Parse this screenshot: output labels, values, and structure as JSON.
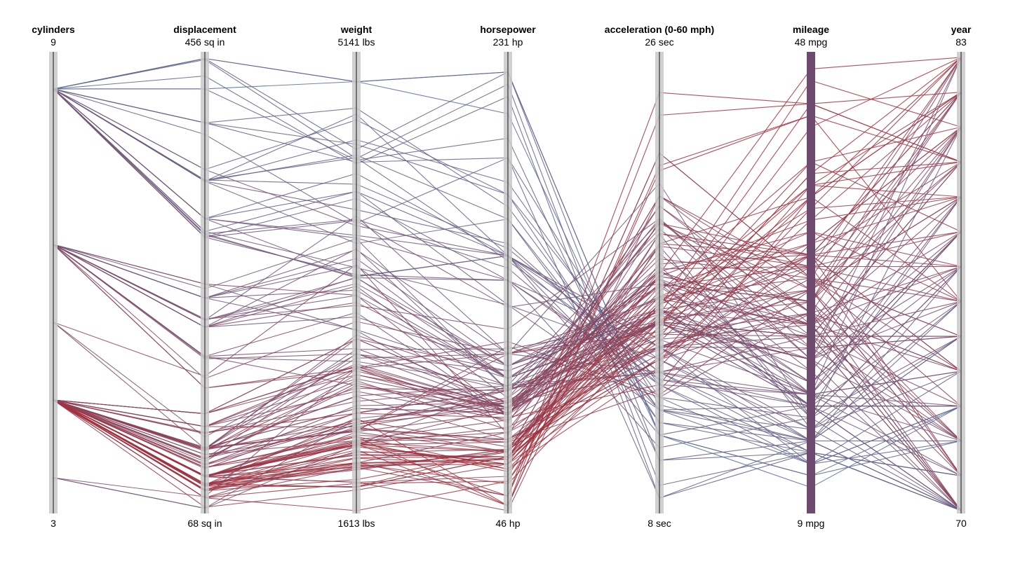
{
  "chart_data": {
    "type": "parallel-coordinates",
    "title": "",
    "color_by": "mileage",
    "color_scale": {
      "low": "#4a78aa",
      "high": "#a3323e"
    },
    "axis_colors": {
      "background": "#c8c8c8",
      "line": "#333333",
      "brush": "#6e4a6e"
    },
    "axes": [
      {
        "key": "cylinders",
        "title": "cylinders",
        "max_label": "9",
        "min_label": "3",
        "domain": [
          3,
          9
        ],
        "brushed": false
      },
      {
        "key": "displacement",
        "title": "displacement",
        "max_label": "456 sq in",
        "min_label": "68 sq in",
        "domain": [
          68,
          456
        ],
        "brushed": false
      },
      {
        "key": "weight",
        "title": "weight",
        "max_label": "5141 lbs",
        "min_label": "1613 lbs",
        "domain": [
          1613,
          5141
        ],
        "brushed": false
      },
      {
        "key": "horsepower",
        "title": "horsepower",
        "max_label": "231 hp",
        "min_label": "46 hp",
        "domain": [
          46,
          231
        ],
        "brushed": false
      },
      {
        "key": "acceleration",
        "title": "acceleration (0-60 mph)",
        "max_label": "26 sec",
        "min_label": "8 sec",
        "domain": [
          8,
          26
        ],
        "brushed": false
      },
      {
        "key": "mileage",
        "title": "mileage",
        "max_label": "48 mpg",
        "min_label": "9 mpg",
        "domain": [
          9,
          48
        ],
        "brushed": true
      },
      {
        "key": "year",
        "title": "year",
        "max_label": "83",
        "min_label": "70",
        "domain": [
          70,
          83
        ],
        "brushed": false
      }
    ],
    "fields": [
      "cylinders",
      "displacement",
      "weight",
      "horsepower",
      "acceleration",
      "mileage",
      "year"
    ],
    "records": [
      [
        8,
        307,
        3504,
        130,
        12.0,
        18,
        70
      ],
      [
        8,
        350,
        3693,
        165,
        11.5,
        15,
        70
      ],
      [
        8,
        318,
        3436,
        150,
        11.0,
        18,
        70
      ],
      [
        8,
        304,
        3433,
        150,
        12.0,
        16,
        70
      ],
      [
        8,
        302,
        3449,
        140,
        10.5,
        17,
        70
      ],
      [
        8,
        429,
        4341,
        198,
        10.0,
        15,
        70
      ],
      [
        8,
        454,
        4354,
        220,
        9.0,
        14,
        70
      ],
      [
        8,
        440,
        4312,
        215,
        8.5,
        14,
        70
      ],
      [
        8,
        455,
        4425,
        225,
        10.0,
        14,
        70
      ],
      [
        8,
        390,
        3850,
        190,
        8.5,
        15,
        70
      ],
      [
        4,
        113,
        2372,
        95,
        15.0,
        24,
        70
      ],
      [
        6,
        198,
        2833,
        95,
        15.5,
        22,
        70
      ],
      [
        6,
        199,
        2774,
        97,
        15.5,
        18,
        70
      ],
      [
        6,
        200,
        2587,
        85,
        16.0,
        21,
        70
      ],
      [
        4,
        97,
        2130,
        88,
        14.5,
        27,
        70
      ],
      [
        4,
        97,
        1835,
        46,
        20.5,
        26,
        70
      ],
      [
        4,
        110,
        2672,
        87,
        17.5,
        25,
        70
      ],
      [
        4,
        107,
        2430,
        90,
        14.5,
        24,
        70
      ],
      [
        4,
        104,
        2375,
        95,
        17.5,
        25,
        70
      ],
      [
        4,
        121,
        2234,
        113,
        12.5,
        26,
        70
      ],
      [
        8,
        400,
        4464,
        175,
        11.5,
        14,
        71
      ],
      [
        8,
        351,
        4154,
        153,
        13.5,
        14,
        71
      ],
      [
        8,
        318,
        4096,
        150,
        13.0,
        14,
        71
      ],
      [
        6,
        250,
        3329,
        100,
        15.5,
        19,
        71
      ],
      [
        6,
        232,
        3288,
        100,
        15.5,
        18,
        71
      ],
      [
        4,
        140,
        2264,
        90,
        15.5,
        28,
        71
      ],
      [
        4,
        122,
        2228,
        86,
        16.5,
        25,
        71
      ],
      [
        4,
        71,
        1773,
        65,
        19.0,
        31,
        71
      ],
      [
        4,
        97,
        1834,
        60,
        19.0,
        30,
        71
      ],
      [
        4,
        98,
        2130,
        80,
        14.5,
        28,
        71
      ],
      [
        8,
        400,
        4746,
        170,
        12.0,
        13,
        72
      ],
      [
        8,
        307,
        4098,
        130,
        14.0,
        15,
        72
      ],
      [
        8,
        455,
        4951,
        225,
        11.0,
        12,
        72
      ],
      [
        4,
        120,
        2506,
        97,
        14.5,
        23,
        72
      ],
      [
        4,
        122,
        2408,
        86,
        15.5,
        22,
        72
      ],
      [
        4,
        97,
        2288,
        88,
        17.0,
        27,
        72
      ],
      [
        4,
        91,
        1955,
        70,
        20.5,
        28,
        72
      ],
      [
        4,
        79,
        2074,
        67,
        19.5,
        26,
        72
      ],
      [
        3,
        70,
        2124,
        97,
        13.5,
        19,
        72
      ],
      [
        4,
        113,
        2278,
        95,
        15.5,
        24,
        72
      ],
      [
        8,
        350,
        4499,
        180,
        12.5,
        13,
        73
      ],
      [
        8,
        429,
        4952,
        208,
        11.0,
        11,
        73
      ],
      [
        8,
        360,
        4654,
        175,
        13.0,
        13,
        73
      ],
      [
        8,
        455,
        4951,
        225,
        11.0,
        12,
        73
      ],
      [
        6,
        225,
        3121,
        105,
        16.5,
        18,
        73
      ],
      [
        6,
        250,
        3021,
        100,
        16.5,
        18,
        73
      ],
      [
        4,
        121,
        2868,
        112,
        15.5,
        19,
        73
      ],
      [
        4,
        97,
        2254,
        75,
        14.0,
        29,
        73
      ],
      [
        4,
        116,
        2158,
        75,
        15.5,
        24,
        73
      ],
      [
        3,
        70,
        2330,
        90,
        13.5,
        18,
        73
      ],
      [
        4,
        98,
        2164,
        83,
        15.0,
        26,
        74
      ],
      [
        4,
        97,
        1950,
        52,
        22.2,
        29,
        74
      ],
      [
        4,
        79,
        1950,
        67,
        15.5,
        31,
        74
      ],
      [
        6,
        250,
        3645,
        110,
        16.0,
        19,
        74
      ],
      [
        6,
        225,
        3651,
        95,
        17.7,
        19,
        74
      ],
      [
        8,
        302,
        4042,
        140,
        14.5,
        16,
        74
      ],
      [
        8,
        350,
        4699,
        150,
        14.5,
        13,
        74
      ],
      [
        4,
        90,
        1937,
        71,
        14.0,
        31,
        74
      ],
      [
        4,
        116,
        2246,
        75,
        14.0,
        26,
        74
      ],
      [
        4,
        140,
        2542,
        83,
        17.0,
        25,
        74
      ],
      [
        8,
        318,
        4237,
        150,
        14.5,
        15,
        75
      ],
      [
        8,
        351,
        4360,
        148,
        13.5,
        15,
        75
      ],
      [
        6,
        231,
        3907,
        110,
        21.0,
        17,
        75
      ],
      [
        6,
        258,
        3730,
        95,
        19.0,
        16,
        75
      ],
      [
        4,
        97,
        2265,
        70,
        20.5,
        29,
        75
      ],
      [
        4,
        120,
        2979,
        97,
        19.5,
        24,
        75
      ],
      [
        4,
        134,
        2464,
        96,
        13.5,
        23,
        75
      ],
      [
        4,
        90,
        2223,
        70,
        16.5,
        29,
        75
      ],
      [
        4,
        107,
        2300,
        91,
        15.5,
        24,
        75
      ],
      [
        4,
        140,
        2639,
        88,
        17.5,
        23,
        75
      ],
      [
        8,
        350,
        4380,
        165,
        12.0,
        15,
        76
      ],
      [
        8,
        318,
        3755,
        150,
        14.0,
        16,
        76
      ],
      [
        6,
        250,
        3575,
        105,
        16.0,
        18,
        76
      ],
      [
        6,
        225,
        3233,
        100,
        15.4,
        22,
        76
      ],
      [
        4,
        85,
        1990,
        52,
        22.2,
        29,
        76
      ],
      [
        4,
        98,
        2050,
        68,
        16.5,
        33,
        76
      ],
      [
        4,
        90,
        2085,
        48,
        21.5,
        43,
        76
      ],
      [
        4,
        79,
        1825,
        58,
        18.6,
        36,
        76
      ],
      [
        4,
        97,
        2155,
        78,
        14.2,
        30,
        76
      ],
      [
        4,
        122,
        2408,
        86,
        15.5,
        24,
        76
      ],
      [
        8,
        400,
        4325,
        190,
        12.2,
        15,
        77
      ],
      [
        8,
        305,
        3880,
        145,
        12.5,
        17,
        77
      ],
      [
        6,
        231,
        3425,
        105,
        16.9,
        20,
        77
      ],
      [
        6,
        250,
        3520,
        100,
        17.2,
        17,
        77
      ],
      [
        4,
        151,
        2740,
        88,
        16.0,
        22,
        77
      ],
      [
        4,
        97,
        1985,
        78,
        15.8,
        30,
        77
      ],
      [
        4,
        91,
        1795,
        68,
        17.5,
        33,
        77
      ],
      [
        4,
        89,
        1930,
        71,
        16.2,
        31,
        77
      ],
      [
        4,
        120,
        2502,
        75,
        14.5,
        26,
        77
      ],
      [
        5,
        121,
        2950,
        103,
        15.9,
        25,
        77
      ],
      [
        8,
        305,
        3425,
        140,
        13.0,
        19,
        78
      ],
      [
        8,
        318,
        3735,
        140,
        13.2,
        19,
        78
      ],
      [
        6,
        225,
        3430,
        100,
        17.2,
        20,
        78
      ],
      [
        6,
        231,
        3380,
        105,
        15.8,
        20,
        78
      ],
      [
        4,
        98,
        2045,
        68,
        18.5,
        30,
        78
      ],
      [
        4,
        85,
        1855,
        70,
        16.7,
        39,
        78
      ],
      [
        4,
        89,
        1800,
        71,
        17.8,
        31,
        78
      ],
      [
        4,
        134,
        2565,
        95,
        14.8,
        25,
        78
      ],
      [
        4,
        121,
        2800,
        110,
        15.4,
        22,
        78
      ],
      [
        5,
        131,
        2830,
        103,
        15.9,
        20,
        78
      ],
      [
        8,
        350,
        3955,
        155,
        13.2,
        18,
        79
      ],
      [
        8,
        360,
        3830,
        150,
        14.8,
        19,
        79
      ],
      [
        6,
        200,
        3155,
        85,
        18.2,
        21,
        79
      ],
      [
        6,
        173,
        2725,
        115,
        12.6,
        28,
        79
      ],
      [
        4,
        86,
        2020,
        65,
        14.1,
        37,
        79
      ],
      [
        4,
        98,
        2150,
        70,
        16.9,
        32,
        79
      ],
      [
        4,
        89,
        2065,
        71,
        14.0,
        34,
        79
      ],
      [
        4,
        151,
        2670,
        90,
        16.0,
        28,
        79
      ],
      [
        5,
        183,
        3530,
        77,
        20.1,
        25,
        79
      ],
      [
        4,
        105,
        2190,
        63,
        13.7,
        35,
        79
      ],
      [
        4,
        91,
        1985,
        67,
        15.7,
        37,
        80
      ],
      [
        4,
        86,
        2110,
        65,
        15.8,
        44,
        80
      ],
      [
        4,
        97,
        2188,
        48,
        21.7,
        43,
        80
      ],
      [
        4,
        90,
        2335,
        48,
        23.7,
        44,
        80
      ],
      [
        4,
        121,
        2234,
        110,
        15.1,
        31,
        80
      ],
      [
        6,
        200,
        2875,
        90,
        17.2,
        24,
        80
      ],
      [
        4,
        140,
        2755,
        88,
        14.4,
        28,
        80
      ],
      [
        4,
        89,
        2145,
        62,
        14.9,
        38,
        80
      ],
      [
        6,
        173,
        2700,
        88,
        17.0,
        27,
        80
      ],
      [
        3,
        80,
        2720,
        110,
        13.5,
        24,
        80
      ],
      [
        4,
        151,
        2950,
        90,
        17.3,
        27,
        81
      ],
      [
        4,
        98,
        2120,
        65,
        16.2,
        32,
        81
      ],
      [
        4,
        91,
        1980,
        67,
        15.3,
        39,
        81
      ],
      [
        6,
        232,
        3210,
        120,
        19.6,
        23,
        81
      ],
      [
        4,
        105,
        2200,
        74,
        12.8,
        32,
        81
      ],
      [
        4,
        85,
        1965,
        65,
        16.1,
        46,
        81
      ],
      [
        6,
        181,
        3085,
        110,
        16.4,
        25,
        81
      ],
      [
        4,
        120,
        2300,
        92,
        16.9,
        30,
        81
      ],
      [
        4,
        112,
        2835,
        88,
        19.6,
        22,
        81
      ],
      [
        6,
        262,
        3015,
        85,
        18.5,
        17,
        81
      ],
      [
        4,
        98,
        2125,
        70,
        17.3,
        34,
        82
      ],
      [
        4,
        112,
        2605,
        85,
        19.4,
        28,
        82
      ],
      [
        4,
        135,
        2370,
        84,
        13.0,
        36,
        82
      ],
      [
        4,
        91,
        1795,
        68,
        16.2,
        37,
        82
      ],
      [
        4,
        151,
        2950,
        90,
        17.3,
        27,
        82
      ],
      [
        4,
        105,
        2125,
        74,
        14.7,
        36,
        82
      ],
      [
        4,
        120,
        2625,
        79,
        18.6,
        31,
        82
      ],
      [
        4,
        119,
        2720,
        82,
        19.4,
        31,
        82
      ],
      [
        6,
        262,
        3290,
        85,
        20.1,
        26,
        82
      ],
      [
        4,
        97,
        2130,
        52,
        24.6,
        44,
        82
      ],
      [
        4,
        140,
        2720,
        86,
        15.6,
        27,
        83
      ],
      [
        4,
        91,
        2025,
        68,
        14.9,
        38,
        83
      ],
      [
        4,
        98,
        2140,
        63,
        15.5,
        36,
        83
      ],
      [
        4,
        112,
        2585,
        88,
        18.0,
        29,
        83
      ],
      [
        4,
        79,
        1613,
        58,
        17.4,
        47,
        83
      ],
      [
        6,
        225,
        3360,
        92,
        19.2,
        22,
        83
      ],
      [
        4,
        86,
        1975,
        57,
        15.3,
        42,
        83
      ],
      [
        4,
        151,
        2735,
        85,
        17.6,
        30,
        83
      ],
      [
        8,
        302,
        3870,
        129,
        17.0,
        19,
        83
      ],
      [
        4,
        108,
        2320,
        72,
        16.3,
        35,
        83
      ]
    ]
  }
}
